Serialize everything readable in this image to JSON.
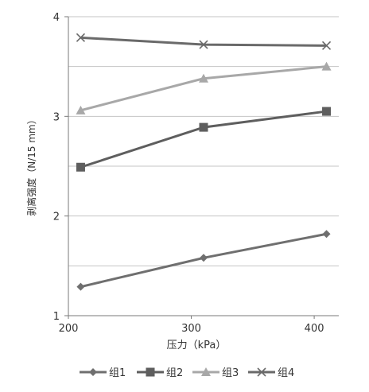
{
  "chart_data": {
    "type": "line",
    "title": "",
    "xlabel": "压力（kPa）",
    "ylabel": "剥离强度（N/15 mm）",
    "xlim": [
      200,
      420
    ],
    "ylim": [
      1,
      4
    ],
    "x_ticks": [
      "200",
      "300",
      "400"
    ],
    "y_ticks": [
      "1",
      "2",
      "3",
      "4"
    ],
    "grid": "horizontal",
    "legend": "bottom",
    "series": [
      {
        "name": "组1",
        "color": "#6f6f6f",
        "marker": "diamond",
        "x": [
          210,
          310,
          410
        ],
        "y": [
          1.29,
          1.58,
          1.82
        ]
      },
      {
        "name": "组2",
        "color": "#5e5e5e",
        "marker": "square",
        "x": [
          210,
          310,
          410
        ],
        "y": [
          2.49,
          2.89,
          3.05
        ]
      },
      {
        "name": "组3",
        "color": "#a8a8a8",
        "marker": "triangle",
        "x": [
          210,
          310,
          410
        ],
        "y": [
          3.06,
          3.38,
          3.5
        ]
      },
      {
        "name": "组4",
        "color": "#6a6a6a",
        "marker": "cross",
        "x": [
          210,
          310,
          410
        ],
        "y": [
          3.79,
          3.72,
          3.71
        ]
      }
    ]
  }
}
